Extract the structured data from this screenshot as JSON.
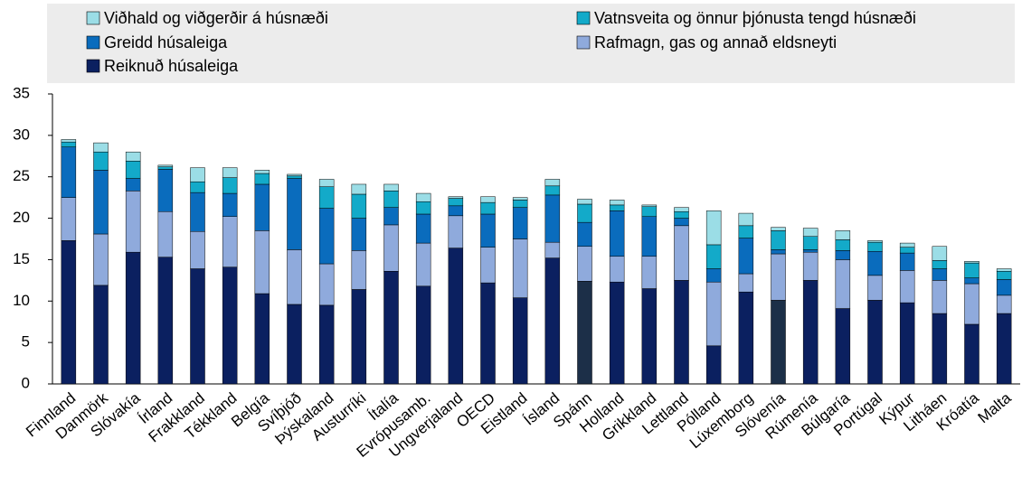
{
  "chart_data": {
    "type": "stacked_bar",
    "categories": [
      "Finnland",
      "Danmörk",
      "Slóvakía",
      "Írland",
      "Frakkland",
      "Tékkland",
      "Belgía",
      "Svíþjóð",
      "Þýskaland",
      "Austurríki",
      "Ítalía",
      "Evrópusamb.",
      "Ungverjaland",
      "OECD",
      "Eistland",
      "Ísland",
      "Spánn",
      "Holland",
      "Grikkland",
      "Lettland",
      "Pólland",
      "Lúxemborg",
      "Slóvenía",
      "Rúmenía",
      "Búlgaría",
      "Portúgal",
      "Kýpur",
      "Litháen",
      "Króatía",
      "Malta"
    ],
    "series": [
      {
        "name": "Reiknuð húsaleiga",
        "color": "#0b2060",
        "colors": [
          "#0b2060",
          "#0b2060",
          "#0b2060",
          "#0b2060",
          "#0b2060",
          "#0b2060",
          "#0b2060",
          "#0b2060",
          "#0b2060",
          "#0b2060",
          "#0b2060",
          "#0b2060",
          "#0b2060",
          "#0b2060",
          "#0b2060",
          "#0b2060",
          "#1c2f48",
          "#0b2060",
          "#0b2060",
          "#0b2060",
          "#0b2060",
          "#0b2060",
          "#1c2f48",
          "#0b2060",
          "#0b2060",
          "#0b2060",
          "#0b2060",
          "#0b2060",
          "#0b2060",
          "#0b2060"
        ],
        "values": [
          17.3,
          11.9,
          15.9,
          15.3,
          13.9,
          14.1,
          10.9,
          9.6,
          9.5,
          11.4,
          13.6,
          11.8,
          16.4,
          12.2,
          10.4,
          15.2,
          12.4,
          12.3,
          11.5,
          12.5,
          4.6,
          11.1,
          10.1,
          12.5,
          9.1,
          10.1,
          9.8,
          8.5,
          7.2,
          8.5
        ]
      },
      {
        "name": "Rafmagn, gas og annað eldsneyti",
        "color": "#8faadc",
        "values": [
          5.2,
          6.2,
          7.4,
          5.5,
          4.5,
          6.1,
          7.6,
          6.6,
          5.0,
          4.7,
          5.6,
          5.2,
          3.9,
          4.3,
          7.1,
          1.9,
          4.2,
          3.1,
          3.9,
          6.6,
          7.7,
          2.2,
          5.6,
          3.4,
          5.9,
          3.0,
          3.9,
          4.0,
          4.9,
          2.2
        ]
      },
      {
        "name": "Greidd húsaleiga",
        "color": "#0a6cbd",
        "values": [
          6.1,
          7.7,
          1.5,
          5.1,
          4.7,
          2.8,
          5.6,
          8.6,
          6.7,
          3.9,
          2.1,
          3.5,
          1.2,
          4.0,
          3.8,
          5.7,
          2.9,
          5.5,
          4.8,
          0.9,
          1.6,
          4.3,
          0.5,
          0.3,
          1.1,
          2.9,
          2.1,
          1.4,
          0.7,
          1.9
        ]
      },
      {
        "name": "Vatnsveita og önnur þjónusta tengd húsnæði",
        "color": "#13aac9",
        "values": [
          0.6,
          2.2,
          2.1,
          0.3,
          1.3,
          1.9,
          1.3,
          0.3,
          2.6,
          2.9,
          2.0,
          1.5,
          0.9,
          1.4,
          0.9,
          1.1,
          2.2,
          0.7,
          1.2,
          0.8,
          2.9,
          1.5,
          2.3,
          1.6,
          1.3,
          1.1,
          0.7,
          1.0,
          1.8,
          1.0
        ]
      },
      {
        "name": "Viðhald og viðgerðir á húsnæði",
        "color": "#9bdde6",
        "values": [
          0.3,
          1.1,
          1.1,
          0.2,
          1.7,
          1.2,
          0.4,
          0.2,
          0.9,
          1.2,
          0.8,
          1.0,
          0.2,
          0.7,
          0.3,
          0.8,
          0.6,
          0.6,
          0.2,
          0.5,
          4.1,
          1.5,
          0.4,
          1.0,
          1.1,
          0.2,
          0.5,
          1.7,
          0.2,
          0.3
        ]
      }
    ],
    "ylim": [
      0,
      35
    ],
    "yticks": [
      0,
      5,
      10,
      15,
      20,
      25,
      30,
      35
    ]
  }
}
